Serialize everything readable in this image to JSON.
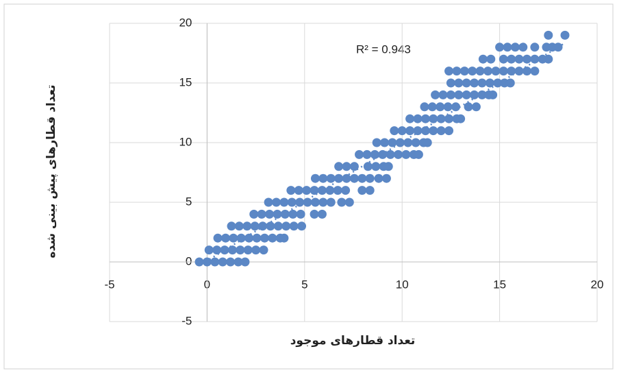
{
  "chart_data": {
    "type": "scatter",
    "x_label": "تعداد قطارهای موجود",
    "y_label": "تعداد قطارهای پیش بینی شده",
    "annotation": "R² = 0.943",
    "xlim": [
      -5,
      20
    ],
    "xticks": [
      -5,
      0,
      5,
      10,
      15,
      20
    ],
    "ylim": [
      -5,
      20
    ],
    "yticks": [
      -5,
      0,
      5,
      10,
      15,
      20
    ],
    "grid": true,
    "color": "#5b87c5",
    "x": [
      -0.4,
      0,
      0.4,
      0.8,
      1.2,
      1.6,
      1.95,
      0.1,
      0.5,
      0.9,
      1.3,
      1.7,
      2.1,
      2.5,
      2.9,
      0.55,
      0.95,
      1.35,
      1.75,
      2.15,
      2.55,
      2.95,
      3.35,
      3.75,
      3.95,
      1.25,
      1.65,
      2.05,
      2.45,
      2.85,
      3.25,
      3.65,
      4.05,
      4.45,
      4.85,
      2.4,
      2.8,
      3.2,
      3.6,
      4.0,
      4.4,
      4.8,
      5.5,
      5.9,
      3.15,
      3.55,
      3.95,
      4.35,
      4.75,
      5.15,
      5.55,
      5.95,
      6.35,
      6.9,
      7.3,
      4.3,
      4.7,
      5.1,
      5.5,
      5.9,
      6.3,
      6.7,
      7.1,
      7.95,
      8.35,
      5.55,
      5.95,
      6.35,
      6.75,
      7.15,
      7.55,
      7.95,
      8.35,
      8.8,
      9.2,
      6.75,
      7.15,
      7.55,
      8.25,
      8.65,
      9.05,
      9.3,
      7.8,
      8.2,
      8.6,
      9.0,
      9.4,
      9.8,
      10.2,
      10.6,
      10.85,
      8.7,
      9.1,
      9.5,
      9.9,
      10.3,
      10.7,
      11.1,
      11.3,
      9.6,
      10.0,
      10.4,
      10.8,
      11.2,
      11.6,
      12.0,
      12.4,
      10.4,
      10.8,
      11.2,
      11.6,
      12.0,
      12.4,
      12.8,
      13.0,
      11.15,
      11.55,
      11.95,
      12.35,
      12.75,
      13.4,
      13.8,
      11.7,
      12.1,
      12.5,
      12.9,
      13.3,
      13.7,
      14.1,
      14.45,
      14.65,
      12.5,
      12.9,
      13.3,
      13.7,
      14.1,
      14.5,
      14.9,
      15.25,
      15.55,
      12.4,
      12.8,
      13.2,
      13.6,
      14.0,
      14.4,
      14.8,
      15.2,
      15.6,
      16.0,
      16.4,
      16.8,
      14.15,
      14.55,
      15.2,
      15.6,
      16.0,
      16.4,
      16.8,
      17.2,
      17.5,
      15.0,
      15.4,
      15.8,
      16.2,
      16.8,
      17.4,
      17.7,
      18.0,
      17.5,
      18.35
    ],
    "y": [
      0,
      0,
      0,
      0,
      0,
      0,
      0,
      1,
      1,
      1,
      1,
      1,
      1,
      1,
      1,
      2,
      2,
      2,
      2,
      2,
      2,
      2,
      2,
      2,
      2,
      3,
      3,
      3,
      3,
      3,
      3,
      3,
      3,
      3,
      3,
      4,
      4,
      4,
      4,
      4,
      4,
      4,
      4,
      4,
      5,
      5,
      5,
      5,
      5,
      5,
      5,
      5,
      5,
      5,
      5,
      6,
      6,
      6,
      6,
      6,
      6,
      6,
      6,
      6,
      6,
      7,
      7,
      7,
      7,
      7,
      7,
      7,
      7,
      7,
      7,
      8,
      8,
      8,
      8,
      8,
      8,
      8,
      9,
      9,
      9,
      9,
      9,
      9,
      9,
      9,
      9,
      10,
      10,
      10,
      10,
      10,
      10,
      10,
      10,
      11,
      11,
      11,
      11,
      11,
      11,
      11,
      11,
      12,
      12,
      12,
      12,
      12,
      12,
      12,
      12,
      13,
      13,
      13,
      13,
      13,
      13,
      13,
      14,
      14,
      14,
      14,
      14,
      14,
      14,
      14,
      14,
      15,
      15,
      15,
      15,
      15,
      15,
      15,
      15,
      15,
      16,
      16,
      16,
      16,
      16,
      16,
      16,
      16,
      16,
      16,
      16,
      16,
      17,
      17,
      17,
      17,
      17,
      17,
      17,
      17,
      17,
      18,
      18,
      18,
      18,
      18,
      18,
      18,
      18,
      19,
      19
    ],
    "trendline": {
      "x": [
        -0.3,
        18.3
      ],
      "y": [
        -0.2,
        18.3
      ]
    }
  }
}
